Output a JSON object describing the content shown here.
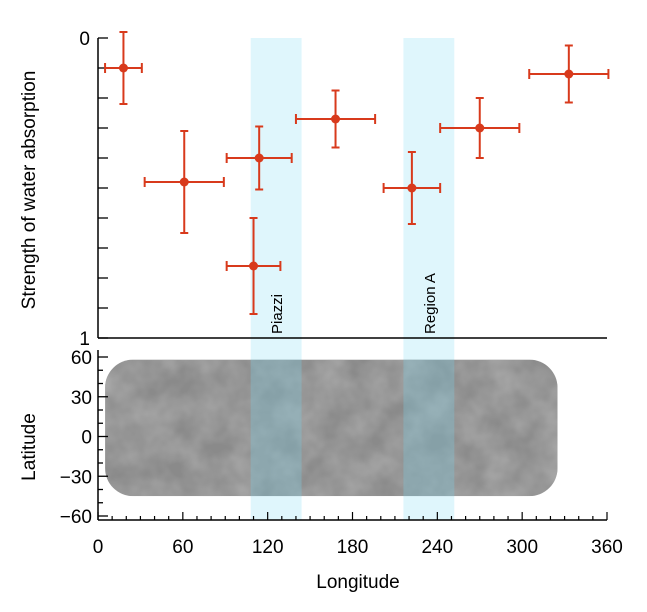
{
  "chart_data": [
    {
      "type": "scatter",
      "ylabel": "Strength of water absorption",
      "ylim": [
        0,
        1
      ],
      "y_inverted": true,
      "yticks": [
        0,
        1
      ],
      "xlim": [
        0,
        360
      ],
      "grid": false,
      "marker_color": "#d83a1c",
      "points": [
        {
          "x": 18,
          "y": 0.1,
          "xerr": 13,
          "yerr": 0.12
        },
        {
          "x": 61,
          "y": 0.48,
          "xerr": 28,
          "yerr": 0.17
        },
        {
          "x": 110,
          "y": 0.76,
          "xerr": 19,
          "yerr": 0.16
        },
        {
          "x": 114,
          "y": 0.4,
          "xerr": 23,
          "yerr": 0.105
        },
        {
          "x": 168,
          "y": 0.27,
          "xerr": 28,
          "yerr": 0.095
        },
        {
          "x": 222,
          "y": 0.5,
          "xerr": 20,
          "yerr": 0.12
        },
        {
          "x": 270,
          "y": 0.3,
          "xerr": 28,
          "yerr": 0.1
        },
        {
          "x": 333,
          "y": 0.12,
          "xerr": 28,
          "yerr": 0.095
        }
      ],
      "regions": [
        {
          "label": "Piazzi",
          "x0": 108,
          "x1": 144
        },
        {
          "label": "Region A",
          "x0": 216,
          "x1": 252
        }
      ],
      "region_color": "#dff6fc"
    },
    {
      "type": "heatmap",
      "description_kind": "grayscale map",
      "xlabel": "Longitude",
      "ylabel": "Latitude",
      "xlim": [
        0,
        360
      ],
      "ylim": [
        -60,
        60
      ],
      "xticks": [
        "0",
        "60",
        "120",
        "180",
        "240",
        "300",
        "360"
      ],
      "yticks": [
        "60",
        "30",
        "0",
        "−30",
        "−60"
      ]
    }
  ]
}
